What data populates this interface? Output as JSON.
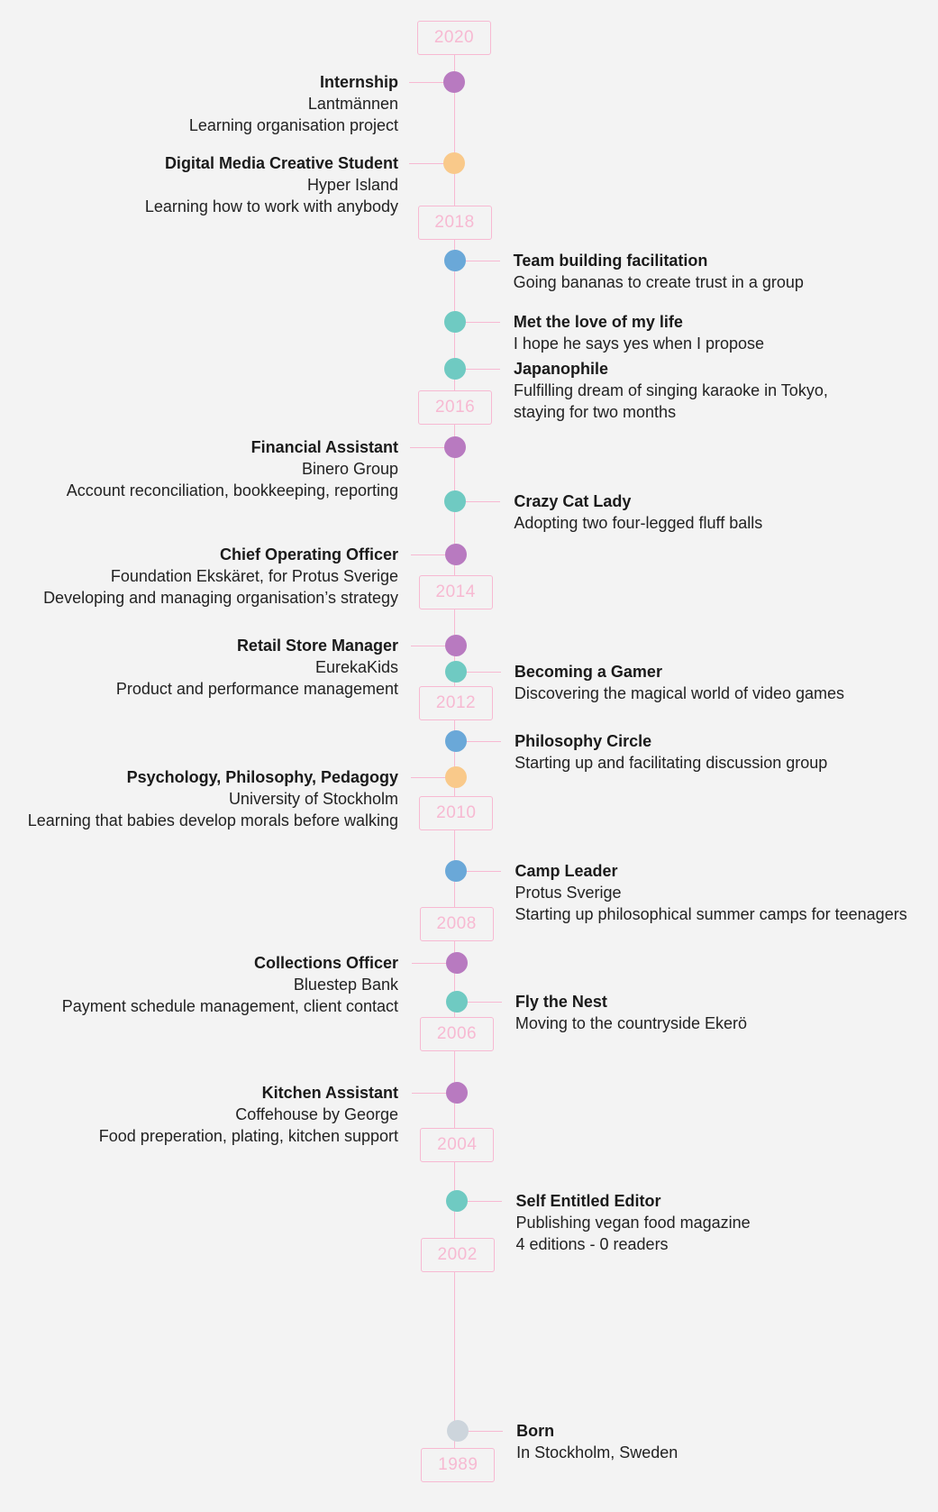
{
  "colors": {
    "line": "#f7b9d2",
    "year_text": "#f7b9d2",
    "work": "#b87ac0",
    "education": "#f9c98a",
    "activity": "#6aa8d8",
    "life": "#6fcac2",
    "birth": "#cdd5dc"
  },
  "years": [
    "2020",
    "2018",
    "2016",
    "2014",
    "2012",
    "2010",
    "2008",
    "2006",
    "2004",
    "2002",
    "1989"
  ],
  "events": [
    {
      "side": "left",
      "category": "work",
      "title": "Internship",
      "lines": [
        "Lantmännen",
        "Learning organisation project"
      ]
    },
    {
      "side": "left",
      "category": "education",
      "title": "Digital Media Creative Student",
      "lines": [
        "Hyper Island",
        "Learning how to work with anybody"
      ]
    },
    {
      "side": "right",
      "category": "activity",
      "title": "Team building facilitation",
      "lines": [
        "Going bananas to create trust in a group"
      ]
    },
    {
      "side": "right",
      "category": "life",
      "title": "Met the love of my life",
      "lines": [
        "I hope he says yes when I propose"
      ]
    },
    {
      "side": "right",
      "category": "life",
      "title": "Japanophile",
      "lines": [
        "Fulfilling dream of singing karaoke in Tokyo,",
        "staying for two months"
      ]
    },
    {
      "side": "left",
      "category": "work",
      "title": "Financial Assistant",
      "lines": [
        "Binero Group",
        "Account reconciliation, bookkeeping, reporting"
      ]
    },
    {
      "side": "right",
      "category": "life",
      "title": "Crazy Cat Lady",
      "lines": [
        "Adopting two four-legged fluff balls"
      ]
    },
    {
      "side": "left",
      "category": "work",
      "title": "Chief Operating Officer",
      "lines": [
        "Foundation Ekskäret, for Protus Sverige",
        "Developing and managing organisation’s strategy"
      ]
    },
    {
      "side": "left",
      "category": "work",
      "title": "Retail Store Manager",
      "lines": [
        "EurekaKids",
        "Product and performance management"
      ]
    },
    {
      "side": "right",
      "category": "life",
      "title": "Becoming a Gamer",
      "lines": [
        "Discovering the magical world of video games"
      ]
    },
    {
      "side": "right",
      "category": "activity",
      "title": "Philosophy Circle",
      "lines": [
        "Starting up and facilitating discussion group"
      ]
    },
    {
      "side": "left",
      "category": "education",
      "title": "Psychology, Philosophy, Pedagogy",
      "lines": [
        "University of Stockholm",
        "Learning that babies develop morals before walking"
      ]
    },
    {
      "side": "right",
      "category": "activity",
      "title": "Camp Leader",
      "lines": [
        "Protus Sverige",
        "Starting up philosophical summer camps for teenagers"
      ]
    },
    {
      "side": "left",
      "category": "work",
      "title": "Collections Officer",
      "lines": [
        "Bluestep Bank",
        "Payment schedule management, client contact"
      ]
    },
    {
      "side": "right",
      "category": "life",
      "title": "Fly the Nest",
      "lines": [
        "Moving to the countryside Ekerö"
      ]
    },
    {
      "side": "left",
      "category": "work",
      "title": "Kitchen Assistant",
      "lines": [
        "Coffehouse by George",
        "Food preperation, plating, kitchen support"
      ]
    },
    {
      "side": "right",
      "category": "life",
      "title": "Self Entitled Editor",
      "lines": [
        "Publishing vegan food magazine",
        "4 editions - 0 readers"
      ]
    },
    {
      "side": "right",
      "category": "birth",
      "title": "Born",
      "lines": [
        "In Stockholm, Sweden"
      ]
    }
  ]
}
